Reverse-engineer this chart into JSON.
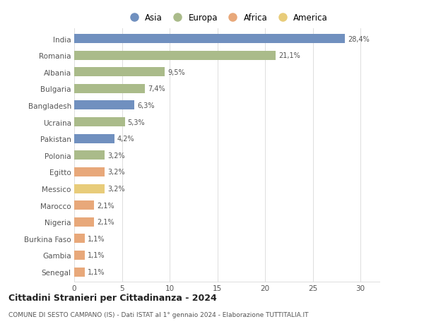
{
  "countries": [
    "India",
    "Romania",
    "Albania",
    "Bulgaria",
    "Bangladesh",
    "Ucraina",
    "Pakistan",
    "Polonia",
    "Egitto",
    "Messico",
    "Marocco",
    "Nigeria",
    "Burkina Faso",
    "Gambia",
    "Senegal"
  ],
  "values": [
    28.4,
    21.1,
    9.5,
    7.4,
    6.3,
    5.3,
    4.2,
    3.2,
    3.2,
    3.2,
    2.1,
    2.1,
    1.1,
    1.1,
    1.1
  ],
  "labels": [
    "28,4%",
    "21,1%",
    "9,5%",
    "7,4%",
    "6,3%",
    "5,3%",
    "4,2%",
    "3,2%",
    "3,2%",
    "3,2%",
    "2,1%",
    "2,1%",
    "1,1%",
    "1,1%",
    "1,1%"
  ],
  "continents": [
    "Asia",
    "Europa",
    "Europa",
    "Europa",
    "Asia",
    "Europa",
    "Asia",
    "Europa",
    "Africa",
    "America",
    "Africa",
    "Africa",
    "Africa",
    "Africa",
    "Africa"
  ],
  "colors": {
    "Asia": "#7090bf",
    "Europa": "#aabb8a",
    "Africa": "#e8a87a",
    "America": "#e8cc7a"
  },
  "legend_labels": [
    "Asia",
    "Europa",
    "Africa",
    "America"
  ],
  "legend_colors": [
    "#7090bf",
    "#aabb8a",
    "#e8a87a",
    "#e8cc7a"
  ],
  "title": "Cittadini Stranieri per Cittadinanza - 2024",
  "subtitle": "COMUNE DI SESTO CAMPANO (IS) - Dati ISTAT al 1° gennaio 2024 - Elaborazione TUTTITALIA.IT",
  "xlim": [
    0,
    32
  ],
  "xticks": [
    0,
    5,
    10,
    15,
    20,
    25,
    30
  ],
  "bg_color": "#ffffff",
  "grid_color": "#dddddd",
  "bar_height": 0.55
}
